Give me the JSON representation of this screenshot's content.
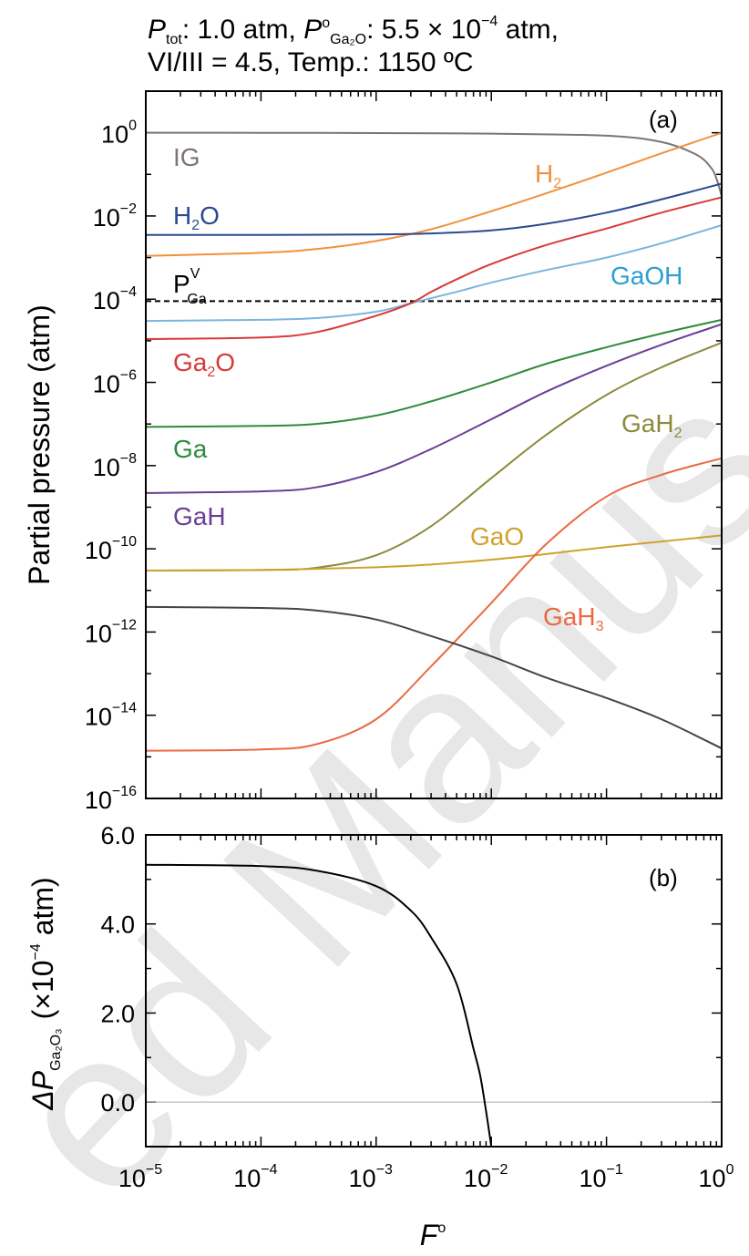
{
  "chart_data": [
    {
      "panel": "(a)",
      "type": "line",
      "x_scale": "log",
      "y_scale": "log",
      "xlim": [
        1e-05,
        1
      ],
      "ylim": [
        1e-16,
        10
      ],
      "ylabel": "Partial pressure (atm)",
      "y_ticks": [
        {
          "value": 1,
          "base": "10",
          "exp": "0"
        },
        {
          "value": 0.01,
          "base": "10",
          "exp": "−2"
        },
        {
          "value": 0.0001,
          "base": "10",
          "exp": "−4"
        },
        {
          "value": 1e-06,
          "base": "10",
          "exp": "−6"
        },
        {
          "value": 1e-08,
          "base": "10",
          "exp": "−8"
        },
        {
          "value": 1e-10,
          "base": "10",
          "exp": "−10"
        },
        {
          "value": 1e-12,
          "base": "10",
          "exp": "−12"
        },
        {
          "value": 1e-14,
          "base": "10",
          "exp": "−14"
        },
        {
          "value": 1e-16,
          "base": "10",
          "exp": "−16"
        }
      ],
      "series": [
        {
          "name": "IG",
          "label_main": "IG",
          "label_sub": "",
          "label_sup": "",
          "color": "#7d7575",
          "points": [
            [
              1e-05,
              1
            ],
            [
              0.0001,
              0.998
            ],
            [
              0.001,
              0.985
            ],
            [
              0.01,
              0.95
            ],
            [
              0.1,
              0.85
            ],
            [
              0.3,
              0.6
            ],
            [
              0.6,
              0.3
            ],
            [
              0.8,
              0.15
            ],
            [
              0.9,
              0.08
            ],
            [
              1,
              0.03
            ]
          ]
        },
        {
          "name": "H2",
          "label_main": "H",
          "label_sub": "2",
          "label_sup": "",
          "color": "#f0913a",
          "points": [
            [
              1e-05,
              0.0011
            ],
            [
              0.0001,
              0.0013
            ],
            [
              0.0003,
              0.0016
            ],
            [
              0.001,
              0.0025
            ],
            [
              0.003,
              0.0048
            ],
            [
              0.01,
              0.013
            ],
            [
              0.03,
              0.035
            ],
            [
              0.1,
              0.11
            ],
            [
              0.3,
              0.32
            ],
            [
              1,
              1
            ]
          ]
        },
        {
          "name": "H2O",
          "label_main": "H",
          "label_sub": "2",
          "label_sup": "",
          "label_tail": "O",
          "color": "#2b4a90",
          "points": [
            [
              1e-05,
              0.0035
            ],
            [
              0.0001,
              0.0035
            ],
            [
              0.001,
              0.0036
            ],
            [
              0.003,
              0.0038
            ],
            [
              0.01,
              0.0045
            ],
            [
              0.03,
              0.0065
            ],
            [
              0.1,
              0.012
            ],
            [
              0.3,
              0.025
            ],
            [
              1,
              0.06
            ]
          ]
        },
        {
          "name": "P_Ga^V",
          "label_main": "P",
          "label_sub": "Ga",
          "label_sup": "V",
          "color": "#000000",
          "dashed": true,
          "points": [
            [
              1e-05,
              9e-05
            ],
            [
              1,
              9e-05
            ]
          ]
        },
        {
          "name": "GaOH",
          "label_main": "GaOH",
          "label_sub": "",
          "label_sup": "",
          "color": "#7ab6dc",
          "points": [
            [
              1e-05,
              3e-05
            ],
            [
              0.0001,
              3.2e-05
            ],
            [
              0.0003,
              3.5e-05
            ],
            [
              0.001,
              5e-05
            ],
            [
              0.002,
              8e-05
            ],
            [
              0.005,
              0.00015
            ],
            [
              0.01,
              0.00025
            ],
            [
              0.03,
              0.0005
            ],
            [
              0.1,
              0.001
            ],
            [
              0.3,
              0.0022
            ],
            [
              1,
              0.006
            ]
          ]
        },
        {
          "name": "Ga2O",
          "label_main": "Ga",
          "label_sub": "2",
          "label_sup": "",
          "label_tail": "O",
          "color": "#d8393a",
          "points": [
            [
              1e-05,
              1.1e-05
            ],
            [
              0.0001,
              1.2e-05
            ],
            [
              0.0003,
              1.6e-05
            ],
            [
              0.001,
              4e-05
            ],
            [
              0.002,
              8e-05
            ],
            [
              0.003,
              0.00015
            ],
            [
              0.005,
              0.0003
            ],
            [
              0.01,
              0.0007
            ],
            [
              0.03,
              0.002
            ],
            [
              0.1,
              0.005
            ],
            [
              0.3,
              0.012
            ],
            [
              1,
              0.028
            ]
          ]
        },
        {
          "name": "Ga",
          "label_main": "Ga",
          "label_sub": "",
          "label_sup": "",
          "color": "#2e8a3c",
          "points": [
            [
              1e-05,
              8.5e-08
            ],
            [
              0.0001,
              9e-08
            ],
            [
              0.0003,
              1e-07
            ],
            [
              0.001,
              1.6e-07
            ],
            [
              0.003,
              3.5e-07
            ],
            [
              0.01,
              1e-06
            ],
            [
              0.03,
              2.8e-06
            ],
            [
              0.1,
              7e-06
            ],
            [
              0.3,
              1.5e-05
            ],
            [
              1,
              3.2e-05
            ]
          ]
        },
        {
          "name": "GaH",
          "label_main": "GaH",
          "label_sub": "",
          "label_sup": "",
          "color": "#6a3e95",
          "points": [
            [
              1e-05,
              2.2e-09
            ],
            [
              0.0001,
              2.4e-09
            ],
            [
              0.0003,
              3e-09
            ],
            [
              0.001,
              7e-09
            ],
            [
              0.003,
              2.5e-08
            ],
            [
              0.01,
              1.3e-07
            ],
            [
              0.03,
              6e-07
            ],
            [
              0.1,
              2.5e-06
            ],
            [
              0.3,
              8e-06
            ],
            [
              1,
              2.5e-05
            ]
          ]
        },
        {
          "name": "GaH2",
          "label_main": "GaH",
          "label_sub": "2",
          "label_sup": "",
          "color": "#8c8a3a",
          "points": [
            [
              1e-05,
              3e-11
            ],
            [
              0.0001,
              3.1e-11
            ],
            [
              0.0003,
              3.5e-11
            ],
            [
              0.001,
              7e-11
            ],
            [
              0.003,
              3.5e-10
            ],
            [
              0.01,
              5e-09
            ],
            [
              0.03,
              5.5e-08
            ],
            [
              0.1,
              5e-07
            ],
            [
              0.3,
              2.3e-06
            ],
            [
              1,
              9e-06
            ]
          ]
        },
        {
          "name": "GaO",
          "label_main": "GaO",
          "label_sub": "",
          "label_sup": "",
          "color": "#cfa22e",
          "points": [
            [
              1e-05,
              3e-11
            ],
            [
              0.0001,
              3.1e-11
            ],
            [
              0.001,
              3.6e-11
            ],
            [
              0.003,
              4.2e-11
            ],
            [
              0.01,
              5.5e-11
            ],
            [
              0.03,
              7.5e-11
            ],
            [
              0.1,
              1.1e-10
            ],
            [
              0.3,
              1.5e-10
            ],
            [
              1,
              2.1e-10
            ]
          ]
        },
        {
          "name": "GaH3",
          "label_main": "GaH",
          "label_sub": "3",
          "label_sup": "",
          "color": "#ea6a42",
          "points": [
            [
              1e-05,
              1.4e-15
            ],
            [
              0.0001,
              1.5e-15
            ],
            [
              0.0003,
              2e-15
            ],
            [
              0.001,
              8e-15
            ],
            [
              0.003,
              1.5e-13
            ],
            [
              0.01,
              5e-12
            ],
            [
              0.03,
              1.3e-10
            ],
            [
              0.1,
              1.8e-09
            ],
            [
              0.3,
              6e-09
            ],
            [
              1,
              1.5e-08
            ]
          ]
        },
        {
          "name": "",
          "label_main": "",
          "label_sub": "",
          "label_sup": "",
          "color": "#454545",
          "points": [
            [
              1e-05,
              4e-12
            ],
            [
              0.0001,
              3.8e-12
            ],
            [
              0.0003,
              3.3e-12
            ],
            [
              0.001,
              2e-12
            ],
            [
              0.003,
              8e-13
            ],
            [
              0.01,
              2.6e-13
            ],
            [
              0.03,
              8e-14
            ],
            [
              0.1,
              2.6e-14
            ],
            [
              0.3,
              8e-15
            ],
            [
              1,
              1.6e-15
            ]
          ]
        }
      ]
    },
    {
      "panel": "(b)",
      "type": "line",
      "x_scale": "log",
      "y_scale": "linear",
      "xlim": [
        1e-05,
        1
      ],
      "ylim": [
        -1,
        6
      ],
      "xlabel": "F",
      "xlabel_sup": "o",
      "ylabel_delta": "ΔP",
      "ylabel_sub": "Ga₂O₃",
      "ylabel_units": "(×10",
      "ylabel_units_sup": "−4",
      "ylabel_units_tail": " atm)",
      "y_ticks": [
        "6.0",
        "4.0",
        "2.0",
        "0.0"
      ],
      "y_tick_values": [
        6,
        4,
        2,
        0
      ],
      "x_ticks": [
        {
          "value": 1e-05,
          "base": "10",
          "exp": "−5"
        },
        {
          "value": 0.0001,
          "base": "10",
          "exp": "−4"
        },
        {
          "value": 0.001,
          "base": "10",
          "exp": "−3"
        },
        {
          "value": 0.01,
          "base": "10",
          "exp": "−2"
        },
        {
          "value": 0.1,
          "base": "10",
          "exp": "−1"
        },
        {
          "value": 1,
          "base": "10",
          "exp": "0"
        }
      ],
      "zero_line": true,
      "series": [
        {
          "name": "",
          "color": "#000000",
          "points": [
            [
              1e-05,
              5.33
            ],
            [
              0.0001,
              5.3
            ],
            [
              0.0003,
              5.2
            ],
            [
              0.001,
              4.85
            ],
            [
              0.002,
              4.3
            ],
            [
              0.003,
              3.7
            ],
            [
              0.005,
              2.65
            ],
            [
              0.007,
              1.2
            ],
            [
              0.008,
              0.6
            ],
            [
              0.009,
              -0.2
            ],
            [
              0.01,
              -1
            ]
          ]
        }
      ]
    }
  ],
  "title": {
    "line1_p": "P",
    "line1_tot": "tot",
    "line1_mid": ": 1.0 atm, ",
    "line1_p2": "P",
    "line1_deg": "o",
    "line1_ga2o": "Ga₂O",
    "line1_val": ": 5.5 × 10",
    "line1_exp": "−4",
    "line1_tail": " atm,",
    "line2": "VI/III = 4.5, Temp.: 1150 ºC"
  },
  "watermark": "ed Manus"
}
